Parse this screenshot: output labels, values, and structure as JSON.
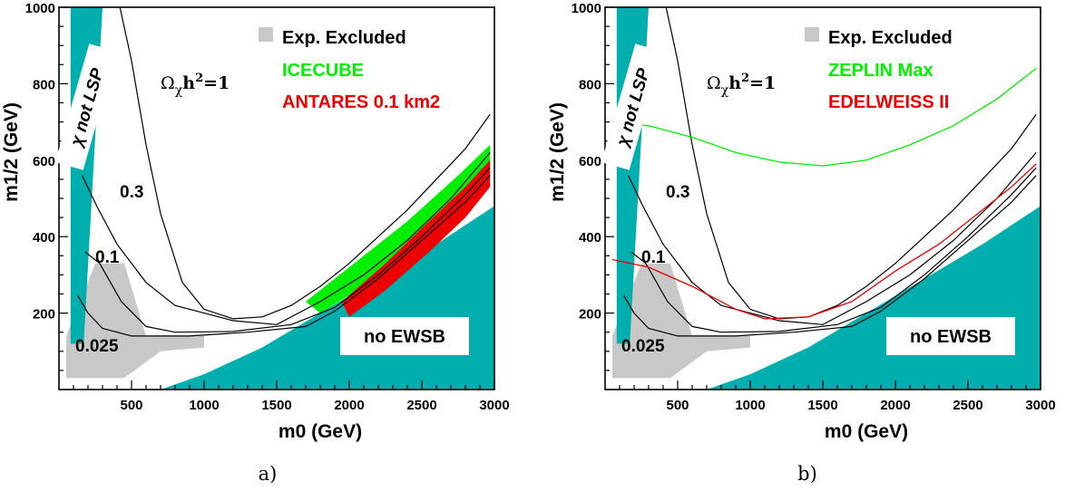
{
  "chart_data": [
    {
      "type": "contour",
      "panel_label": "a)",
      "xlabel": "m0 (GeV)",
      "ylabel": "m1/2 (GeV)",
      "xlim": [
        0,
        3000
      ],
      "ylim": [
        0,
        1000
      ],
      "xticks": [
        "500",
        "1000",
        "1500",
        "2000",
        "2500",
        "3000"
      ],
      "yticks": [
        "200",
        "400",
        "600",
        "800",
        "1000"
      ],
      "legend": [
        {
          "label": "Exp. Excluded",
          "color": "#c8c8c8"
        },
        {
          "label": "ICECUBE",
          "color": "#00ee00"
        },
        {
          "label": "ANTARES 0.1 km2",
          "color": "#ee0000"
        }
      ],
      "region_labels": {
        "no_lsp": "χ  not LSP",
        "no_ewsb": "no EWSB"
      },
      "relic_label": {
        "prefix": "Ω",
        "sub": "χ",
        "mid": "h",
        "sup": "2",
        "suffix": "=1"
      },
      "contour_labels": [
        "0.3",
        "0.1",
        "0.025"
      ],
      "excluded_region": [
        [
          50,
          30
        ],
        [
          450,
          30
        ],
        [
          700,
          100
        ],
        [
          1000,
          110
        ],
        [
          1000,
          140
        ],
        [
          600,
          140
        ],
        [
          450,
          330
        ],
        [
          250,
          330
        ],
        [
          50,
          140
        ]
      ],
      "detector_regions": [
        {
          "name": "ICECUBE",
          "color": "#00ee00",
          "polygon": [
            [
              1700,
              230
            ],
            [
              2000,
              320
            ],
            [
              2400,
              440
            ],
            [
              2750,
              560
            ],
            [
              2970,
              640
            ],
            [
              2970,
              560
            ],
            [
              2750,
              470
            ],
            [
              2400,
              360
            ],
            [
              2100,
              270
            ],
            [
              1800,
              200
            ]
          ]
        },
        {
          "name": "ANTARES 0.1 km2",
          "color": "#ee0000",
          "polygon": [
            [
              1950,
              230
            ],
            [
              2250,
              330
            ],
            [
              2550,
              440
            ],
            [
              2800,
              530
            ],
            [
              2970,
              600
            ],
            [
              2970,
              530
            ],
            [
              2800,
              450
            ],
            [
              2550,
              360
            ],
            [
              2250,
              260
            ],
            [
              2000,
              190
            ]
          ]
        }
      ],
      "relic_contours": [
        {
          "label": "1",
          "points": [
            [
              420,
              1000
            ],
            [
              500,
              860
            ],
            [
              600,
              640
            ],
            [
              700,
              460
            ],
            [
              850,
              280
            ],
            [
              1000,
              210
            ],
            [
              1200,
              185
            ],
            [
              1400,
              190
            ],
            [
              1600,
              220
            ],
            [
              1800,
              270
            ],
            [
              2000,
              330
            ],
            [
              2200,
              400
            ],
            [
              2400,
              470
            ],
            [
              2600,
              550
            ],
            [
              2800,
              630
            ],
            [
              2970,
              720
            ]
          ]
        },
        {
          "label": "0.3",
          "points": [
            [
              160,
              560
            ],
            [
              260,
              480
            ],
            [
              400,
              380
            ],
            [
              600,
              280
            ],
            [
              800,
              220
            ],
            [
              1000,
              200
            ],
            [
              1200,
              180
            ],
            [
              1500,
              170
            ],
            [
              1800,
              230
            ],
            [
              2100,
              300
            ],
            [
              2400,
              390
            ],
            [
              2700,
              500
            ],
            [
              2970,
              620
            ]
          ]
        },
        {
          "label": "0.1",
          "points": [
            [
              180,
              360
            ],
            [
              280,
              330
            ],
            [
              430,
              230
            ],
            [
              600,
              165
            ],
            [
              800,
              150
            ],
            [
              1200,
              152
            ],
            [
              1600,
              170
            ],
            [
              1900,
              215
            ],
            [
              2200,
              300
            ],
            [
              2500,
              400
            ],
            [
              2800,
              510
            ],
            [
              2970,
              580
            ]
          ]
        },
        {
          "label": "0.025",
          "points": [
            [
              130,
              245
            ],
            [
              200,
              200
            ],
            [
              300,
              160
            ],
            [
              500,
              140
            ],
            [
              900,
              140
            ],
            [
              1300,
              150
            ],
            [
              1700,
              165
            ],
            [
              1900,
              205
            ],
            [
              2200,
              290
            ],
            [
              2500,
              390
            ],
            [
              2800,
              490
            ],
            [
              2970,
              560
            ]
          ]
        }
      ]
    },
    {
      "type": "contour",
      "panel_label": "b)",
      "xlabel": "m0 (GeV)",
      "ylabel": "m1/2 (GeV)",
      "xlim": [
        0,
        3000
      ],
      "ylim": [
        0,
        1000
      ],
      "xticks": [
        "500",
        "1000",
        "1500",
        "2000",
        "2500",
        "3000"
      ],
      "yticks": [
        "200",
        "400",
        "600",
        "800",
        "1000"
      ],
      "legend": [
        {
          "label": "Exp. Excluded",
          "color": "#c8c8c8"
        },
        {
          "label": "ZEPLIN Max",
          "color": "#00ee00"
        },
        {
          "label": "EDELWEISS II",
          "color": "#ee0000"
        }
      ],
      "region_labels": {
        "no_lsp": "χ  not LSP",
        "no_ewsb": "no EWSB"
      },
      "relic_label": {
        "prefix": "Ω",
        "sub": "χ",
        "mid": "h",
        "sup": "2",
        "suffix": "=1"
      },
      "contour_labels": [
        "0.3",
        "0.1",
        "0.025"
      ],
      "excluded_region": [
        [
          50,
          30
        ],
        [
          450,
          30
        ],
        [
          700,
          100
        ],
        [
          1000,
          110
        ],
        [
          1000,
          140
        ],
        [
          600,
          140
        ],
        [
          450,
          330
        ],
        [
          250,
          330
        ],
        [
          50,
          140
        ]
      ],
      "limit_curves": [
        {
          "name": "ZEPLIN Max",
          "color": "#00ee00",
          "points": [
            [
              50,
              700
            ],
            [
              300,
              690
            ],
            [
              600,
              660
            ],
            [
              900,
              620
            ],
            [
              1200,
              595
            ],
            [
              1500,
              585
            ],
            [
              1800,
              600
            ],
            [
              2100,
              640
            ],
            [
              2400,
              690
            ],
            [
              2700,
              760
            ],
            [
              2970,
              840
            ]
          ]
        },
        {
          "name": "EDELWEISS II",
          "color": "#ee0000",
          "points": [
            [
              50,
              340
            ],
            [
              300,
              320
            ],
            [
              600,
              270
            ],
            [
              900,
              210
            ],
            [
              1100,
              185
            ],
            [
              1400,
              190
            ],
            [
              1700,
              230
            ],
            [
              2000,
              310
            ],
            [
              2300,
              380
            ],
            [
              2600,
              470
            ],
            [
              2800,
              530
            ],
            [
              2970,
              590
            ]
          ]
        }
      ],
      "relic_contours": [
        {
          "label": "1",
          "points": [
            [
              420,
              1000
            ],
            [
              500,
              860
            ],
            [
              600,
              640
            ],
            [
              700,
              460
            ],
            [
              850,
              280
            ],
            [
              1000,
              210
            ],
            [
              1200,
              185
            ],
            [
              1400,
              190
            ],
            [
              1600,
              220
            ],
            [
              1800,
              270
            ],
            [
              2000,
              330
            ],
            [
              2200,
              400
            ],
            [
              2400,
              470
            ],
            [
              2600,
              550
            ],
            [
              2800,
              630
            ],
            [
              2970,
              720
            ]
          ]
        },
        {
          "label": "0.3",
          "points": [
            [
              160,
              560
            ],
            [
              260,
              480
            ],
            [
              400,
              380
            ],
            [
              600,
              280
            ],
            [
              800,
              220
            ],
            [
              1000,
              200
            ],
            [
              1200,
              180
            ],
            [
              1500,
              170
            ],
            [
              1800,
              230
            ],
            [
              2100,
              300
            ],
            [
              2400,
              390
            ],
            [
              2700,
              500
            ],
            [
              2970,
              620
            ]
          ]
        },
        {
          "label": "0.1",
          "points": [
            [
              180,
              360
            ],
            [
              280,
              330
            ],
            [
              430,
              230
            ],
            [
              600,
              165
            ],
            [
              800,
              150
            ],
            [
              1200,
              152
            ],
            [
              1600,
              170
            ],
            [
              1900,
              215
            ],
            [
              2200,
              300
            ],
            [
              2500,
              400
            ],
            [
              2800,
              510
            ],
            [
              2970,
              580
            ]
          ]
        },
        {
          "label": "0.025",
          "points": [
            [
              130,
              245
            ],
            [
              200,
              200
            ],
            [
              300,
              160
            ],
            [
              500,
              140
            ],
            [
              900,
              140
            ],
            [
              1300,
              150
            ],
            [
              1700,
              165
            ],
            [
              1900,
              205
            ],
            [
              2200,
              290
            ],
            [
              2500,
              390
            ],
            [
              2800,
              490
            ],
            [
              2970,
              560
            ]
          ]
        }
      ]
    }
  ]
}
